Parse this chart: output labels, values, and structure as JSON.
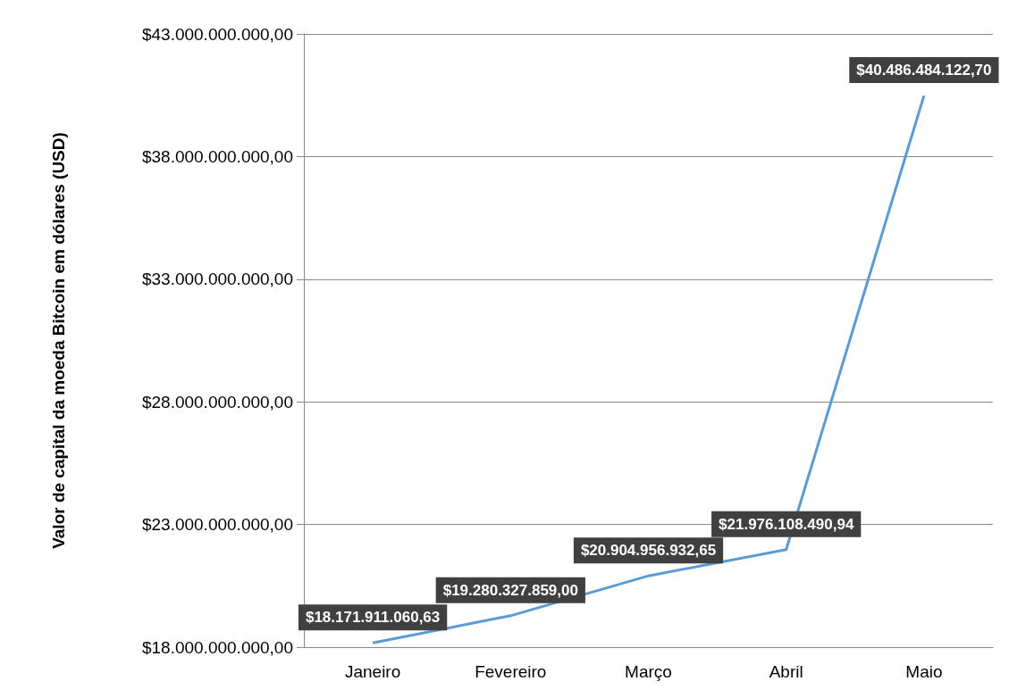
{
  "chart_data": {
    "type": "line",
    "ylabel": "Valor de capital da moeda Bitcoin em dólares (USD)",
    "categories": [
      "Janeiro",
      "Fevereiro",
      "Março",
      "Abril",
      "Maio"
    ],
    "series": [
      {
        "color": "#5b9bd5",
        "values": [
          18171911060.63,
          19280327859.0,
          20904956932.65,
          21976108490.94,
          40486484122.7
        ],
        "value_labels": [
          "$18.171.911.060,63",
          "$19.280.327.859,00",
          "$20.904.956.932,65",
          "$21.976.108.490,94",
          "$40.486.484.122,70"
        ]
      }
    ],
    "ylim": [
      18000000000,
      43000000000
    ],
    "yticks": [
      {
        "value": 18000000000,
        "label": "$18.000.000.000,00"
      },
      {
        "value": 23000000000,
        "label": "$23.000.000.000,00"
      },
      {
        "value": 28000000000,
        "label": "$28.000.000.000,00"
      },
      {
        "value": 33000000000,
        "label": "$33.000.000.000,00"
      },
      {
        "value": 38000000000,
        "label": "$38.000.000.000,00"
      },
      {
        "value": 43000000000,
        "label": "$43.000.000.000,00"
      }
    ],
    "grid": "y",
    "marker": "none",
    "line_style": "solid"
  }
}
